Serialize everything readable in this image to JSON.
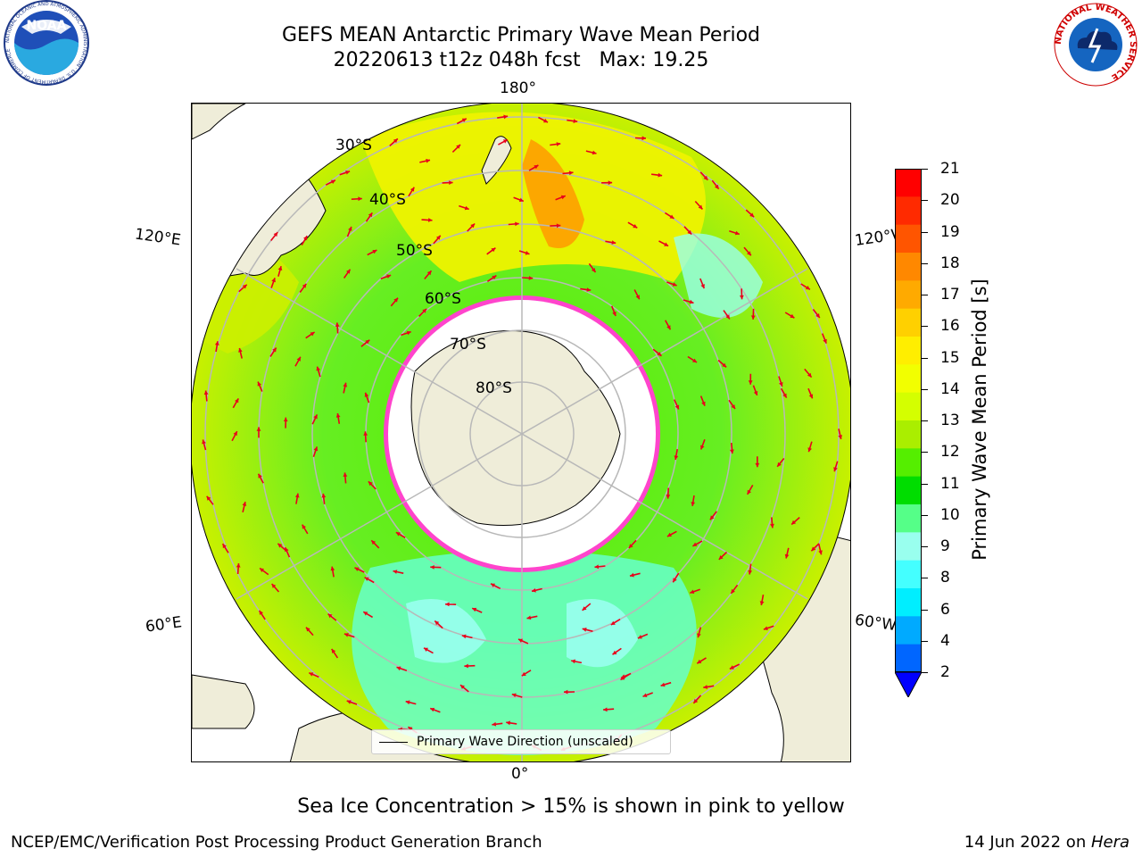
{
  "header": {
    "title_line1": "GEFS MEAN Antarctic Primary Wave Mean Period",
    "title_line2": "20220613 t12z 048h fcst   Max: 19.25"
  },
  "logos": {
    "left_text": "NOAA",
    "left_ring": "NATIONAL OCEANIC AND ATMOSPHERIC ADMINISTRATION · U.S. DEPARTMENT OF COMMERCE",
    "right_ring": "NATIONAL WEATHER SERVICE"
  },
  "map": {
    "longitude_labels": {
      "top": "180°",
      "bottom": "0°",
      "upper_left": "120°E",
      "upper_right": "120°W",
      "lower_left": "60°E",
      "lower_right": "60°W"
    },
    "latitude_labels": [
      "30°S",
      "40°S",
      "50°S",
      "60°S",
      "70°S",
      "80°S"
    ],
    "legend_label": "Primary Wave Direction (unscaled)"
  },
  "colorbar": {
    "label": "Primary Wave Mean Period [s]",
    "ticks": [
      "21",
      "20",
      "19",
      "18",
      "17",
      "16",
      "15",
      "14",
      "13",
      "12",
      "11",
      "10",
      "9",
      "8",
      "6",
      "4",
      "2"
    ],
    "colors": [
      "#ff0000",
      "#ff2a00",
      "#ff5500",
      "#ff8800",
      "#ffaa00",
      "#ffd000",
      "#ffee00",
      "#f2ff00",
      "#d4ff00",
      "#aaee00",
      "#55ee00",
      "#00dd00",
      "#55ff88",
      "#99ffee",
      "#44ffff",
      "#00eeff",
      "#00aaff",
      "#0066ff"
    ]
  },
  "caption": "Sea Ice Concentration > 15% is shown in pink to yellow",
  "footer": {
    "left": "NCEP/EMC/Verification Post Processing Product Generation Branch",
    "right_date": "14 Jun 2022 on ",
    "right_host": "Hera"
  }
}
